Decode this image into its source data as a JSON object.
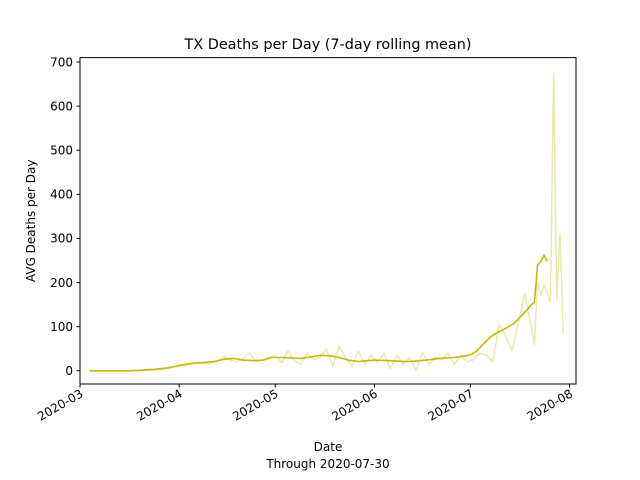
{
  "chart_data": {
    "type": "line",
    "title": "TX Deaths per Day (7-day rolling mean)",
    "xlabel": "Date",
    "xlabel_sub": "Through 2020-07-30",
    "ylabel": "AVG Deaths per Day",
    "xlim": [
      "2020-03-01",
      "2020-08-03"
    ],
    "ylim": [
      -30,
      710
    ],
    "x_ticks": [
      "2020-03",
      "2020-04",
      "2020-05",
      "2020-06",
      "2020-07",
      "2020-08"
    ],
    "y_ticks": [
      0,
      100,
      200,
      300,
      400,
      500,
      600,
      700
    ],
    "grid": false,
    "series": [
      {
        "role": "daily",
        "color": "#e9e8b0",
        "points": [
          [
            "2020-03-04",
            0
          ],
          [
            "2020-03-08",
            0
          ],
          [
            "2020-03-12",
            0
          ],
          [
            "2020-03-16",
            0
          ],
          [
            "2020-03-20",
            1
          ],
          [
            "2020-03-23",
            3
          ],
          [
            "2020-03-26",
            2
          ],
          [
            "2020-03-29",
            6
          ],
          [
            "2020-04-01",
            10
          ],
          [
            "2020-04-04",
            14
          ],
          [
            "2020-04-07",
            19
          ],
          [
            "2020-04-10",
            16
          ],
          [
            "2020-04-13",
            22
          ],
          [
            "2020-04-15",
            32
          ],
          [
            "2020-04-17",
            25
          ],
          [
            "2020-04-19",
            20
          ],
          [
            "2020-04-21",
            28
          ],
          [
            "2020-04-23",
            40
          ],
          [
            "2020-04-25",
            20
          ],
          [
            "2020-04-28",
            26
          ],
          [
            "2020-05-01",
            35
          ],
          [
            "2020-05-03",
            18
          ],
          [
            "2020-05-05",
            45
          ],
          [
            "2020-05-07",
            22
          ],
          [
            "2020-05-09",
            15
          ],
          [
            "2020-05-11",
            40
          ],
          [
            "2020-05-13",
            25
          ],
          [
            "2020-05-15",
            30
          ],
          [
            "2020-05-17",
            50
          ],
          [
            "2020-05-19",
            10
          ],
          [
            "2020-05-21",
            55
          ],
          [
            "2020-05-23",
            30
          ],
          [
            "2020-05-25",
            10
          ],
          [
            "2020-05-27",
            45
          ],
          [
            "2020-05-29",
            15
          ],
          [
            "2020-05-31",
            35
          ],
          [
            "2020-06-02",
            20
          ],
          [
            "2020-06-04",
            40
          ],
          [
            "2020-06-06",
            5
          ],
          [
            "2020-06-08",
            35
          ],
          [
            "2020-06-10",
            15
          ],
          [
            "2020-06-12",
            30
          ],
          [
            "2020-06-14",
            0
          ],
          [
            "2020-06-16",
            42
          ],
          [
            "2020-06-18",
            15
          ],
          [
            "2020-06-20",
            30
          ],
          [
            "2020-06-22",
            25
          ],
          [
            "2020-06-24",
            40
          ],
          [
            "2020-06-26",
            15
          ],
          [
            "2020-06-28",
            35
          ],
          [
            "2020-06-30",
            20
          ],
          [
            "2020-07-02",
            25
          ],
          [
            "2020-07-04",
            40
          ],
          [
            "2020-07-06",
            35
          ],
          [
            "2020-07-08",
            20
          ],
          [
            "2020-07-10",
            105
          ],
          [
            "2020-07-12",
            80
          ],
          [
            "2020-07-14",
            45
          ],
          [
            "2020-07-16",
            110
          ],
          [
            "2020-07-18",
            175
          ],
          [
            "2020-07-20",
            100
          ],
          [
            "2020-07-21",
            60
          ],
          [
            "2020-07-22",
            200
          ],
          [
            "2020-07-23",
            170
          ],
          [
            "2020-07-24",
            195
          ],
          [
            "2020-07-26",
            155
          ],
          [
            "2020-07-27",
            675
          ],
          [
            "2020-07-28",
            160
          ],
          [
            "2020-07-29",
            310
          ],
          [
            "2020-07-30",
            85
          ]
        ]
      },
      {
        "role": "7-day rolling mean",
        "color": "#bfbf00",
        "points": [
          [
            "2020-03-04",
            0
          ],
          [
            "2020-03-10",
            0
          ],
          [
            "2020-03-16",
            0
          ],
          [
            "2020-03-20",
            1
          ],
          [
            "2020-03-24",
            3
          ],
          [
            "2020-03-28",
            6
          ],
          [
            "2020-04-01",
            12
          ],
          [
            "2020-04-05",
            17
          ],
          [
            "2020-04-09",
            19
          ],
          [
            "2020-04-12",
            21
          ],
          [
            "2020-04-15",
            26
          ],
          [
            "2020-04-18",
            28
          ],
          [
            "2020-04-21",
            24
          ],
          [
            "2020-04-24",
            23
          ],
          [
            "2020-04-27",
            24
          ],
          [
            "2020-04-30",
            30
          ],
          [
            "2020-05-03",
            30
          ],
          [
            "2020-05-06",
            29
          ],
          [
            "2020-05-09",
            28
          ],
          [
            "2020-05-12",
            31
          ],
          [
            "2020-05-15",
            35
          ],
          [
            "2020-05-18",
            34
          ],
          [
            "2020-05-21",
            30
          ],
          [
            "2020-05-24",
            24
          ],
          [
            "2020-05-27",
            21
          ],
          [
            "2020-05-30",
            23
          ],
          [
            "2020-06-02",
            24
          ],
          [
            "2020-06-05",
            23
          ],
          [
            "2020-06-08",
            22
          ],
          [
            "2020-06-11",
            21
          ],
          [
            "2020-06-14",
            22
          ],
          [
            "2020-06-17",
            24
          ],
          [
            "2020-06-20",
            27
          ],
          [
            "2020-06-23",
            29
          ],
          [
            "2020-06-26",
            30
          ],
          [
            "2020-06-29",
            33
          ],
          [
            "2020-07-01",
            36
          ],
          [
            "2020-07-03",
            45
          ],
          [
            "2020-07-05",
            60
          ],
          [
            "2020-07-07",
            75
          ],
          [
            "2020-07-09",
            85
          ],
          [
            "2020-07-11",
            92
          ],
          [
            "2020-07-13",
            100
          ],
          [
            "2020-07-15",
            110
          ],
          [
            "2020-07-17",
            125
          ],
          [
            "2020-07-19",
            140
          ],
          [
            "2020-07-20",
            150
          ],
          [
            "2020-07-21",
            155
          ],
          [
            "2020-07-22",
            240
          ],
          [
            "2020-07-23",
            248
          ],
          [
            "2020-07-24",
            262
          ],
          [
            "2020-07-25",
            248
          ]
        ]
      }
    ]
  }
}
